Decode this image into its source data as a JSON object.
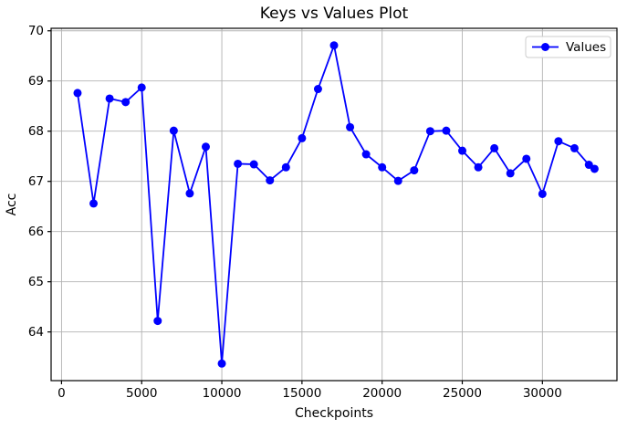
{
  "window": {
    "background_color": "#ffffff"
  },
  "chart_data": {
    "type": "line",
    "title": "Keys vs Values Plot",
    "xlabel": "Checkpoints",
    "ylabel": "Acc",
    "grid": true,
    "legend_position": "upper right",
    "series": [
      {
        "name": "Values",
        "marker": "circle",
        "color": "#0000ff",
        "x": [
          1000,
          2000,
          3000,
          4000,
          5000,
          6000,
          7000,
          8000,
          9000,
          10000,
          11000,
          12000,
          13000,
          14000,
          15000,
          16000,
          17000,
          18000,
          19000,
          20000,
          21000,
          22000,
          23000,
          24000,
          25000,
          26000,
          27000,
          28000,
          29000,
          30000,
          31000,
          32000,
          32900,
          33250
        ],
        "y": [
          68.76,
          66.56,
          68.65,
          68.58,
          68.87,
          64.22,
          68.01,
          66.76,
          67.69,
          63.37,
          67.35,
          67.34,
          67.02,
          67.28,
          67.86,
          68.84,
          69.71,
          68.08,
          67.54,
          67.28,
          67.01,
          67.22,
          68.0,
          68.01,
          67.61,
          67.28,
          67.66,
          67.16,
          67.45,
          66.75,
          67.8,
          67.66,
          67.33,
          67.25
        ]
      }
    ],
    "xlim": [
      -650,
      34650
    ],
    "ylim": [
      63.03,
      70.05
    ],
    "xticks": [
      0,
      5000,
      10000,
      15000,
      20000,
      25000,
      30000
    ],
    "yticks": [
      64,
      65,
      66,
      67,
      68,
      69,
      70
    ],
    "xtick_labels": [
      "0",
      "5000",
      "10000",
      "15000",
      "20000",
      "25000",
      "30000"
    ],
    "ytick_labels": [
      "64",
      "65",
      "66",
      "67",
      "68",
      "69",
      "70"
    ],
    "colors": {
      "line": "#0000ff",
      "grid": "#b2b2b2",
      "spine": "#000000",
      "text": "#000000",
      "legend_border": "#cccccc",
      "plot_background": "#ffffff"
    },
    "legend": {
      "entries": [
        "Values"
      ]
    }
  }
}
